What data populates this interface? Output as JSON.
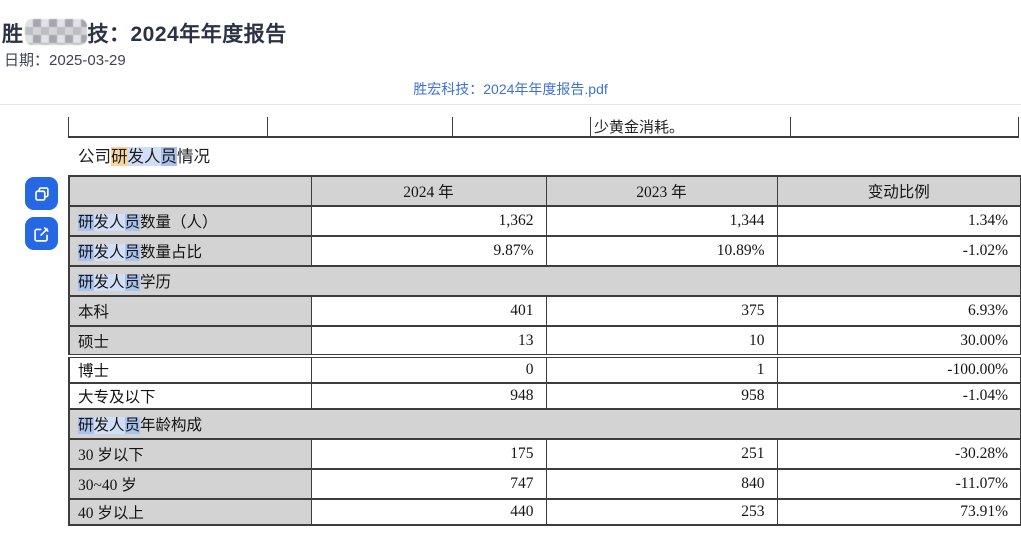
{
  "header": {
    "title_prefix": "胜",
    "title_suffix": "技：2024年年度报告",
    "date_label": "日期：",
    "date_value": "2025-03-29",
    "pdf_link_text": "胜宏科技：2024年年度报告.pdf"
  },
  "side_toolbar": {
    "copy_button": "copy-icon",
    "edit_button": "edit-icon"
  },
  "colors": {
    "accent_blue": "#2667e2",
    "link_blue": "#3e71d9",
    "cell_gray": "#d3d3d3",
    "border_dark": "#3d3d3d",
    "highlight_blue_strong": "#a9c2ee",
    "highlight_blue_weak": "#d2def6",
    "highlight_orange": "#f9d6a0"
  },
  "prev_table_fragment": {
    "text": "少黄金消耗。"
  },
  "section_heading": {
    "segments": [
      {
        "t": "公司"
      },
      {
        "t": "研",
        "h": "o"
      },
      {
        "t": "发人",
        "h": "w"
      },
      {
        "t": "员",
        "h": "s"
      },
      {
        "t": "情况"
      }
    ]
  },
  "table": {
    "columns": [
      "",
      "2024 年",
      "2023 年",
      "变动比例"
    ],
    "rows": [
      {
        "type": "data",
        "gray": true,
        "label": [
          {
            "t": "研",
            "h": "s"
          },
          {
            "t": "发人",
            "h": "w"
          },
          {
            "t": "员",
            "h": "s"
          },
          {
            "t": "数量（人）"
          }
        ],
        "values": [
          "1,362",
          "1,344",
          "1.34%"
        ]
      },
      {
        "type": "data",
        "gray": true,
        "label": [
          {
            "t": "研",
            "h": "s"
          },
          {
            "t": "发人",
            "h": "w"
          },
          {
            "t": "员",
            "h": "s"
          },
          {
            "t": "数量占比"
          }
        ],
        "values": [
          "9.87%",
          "10.89%",
          "-1.02%"
        ]
      },
      {
        "type": "section",
        "label": [
          {
            "t": "研",
            "h": "s"
          },
          {
            "t": "发人",
            "h": "w"
          },
          {
            "t": "员",
            "h": "s"
          },
          {
            "t": "学历"
          }
        ]
      },
      {
        "type": "data",
        "gray": true,
        "label": [
          {
            "t": "本科"
          }
        ],
        "values": [
          "401",
          "375",
          "6.93%"
        ]
      },
      {
        "type": "data",
        "gray": true,
        "label": [
          {
            "t": "硕士"
          }
        ],
        "values": [
          "13",
          "10",
          "30.00%"
        ]
      },
      {
        "type": "data",
        "gray": false,
        "label": [
          {
            "t": "博士"
          }
        ],
        "values": [
          "0",
          "1",
          "-100.00%"
        ]
      },
      {
        "type": "data",
        "gray": false,
        "label": [
          {
            "t": "大专及以下"
          }
        ],
        "values": [
          "948",
          "958",
          "-1.04%"
        ]
      },
      {
        "type": "section",
        "label": [
          {
            "t": "研",
            "h": "s"
          },
          {
            "t": "发人",
            "h": "w"
          },
          {
            "t": "员",
            "h": "s"
          },
          {
            "t": "年龄构成"
          }
        ]
      },
      {
        "type": "data",
        "gray": true,
        "label": [
          {
            "t": "30 岁以下"
          }
        ],
        "values": [
          "175",
          "251",
          "-30.28%"
        ]
      },
      {
        "type": "data",
        "gray": true,
        "label": [
          {
            "t": "30~40 岁"
          }
        ],
        "values": [
          "747",
          "840",
          "-11.07%"
        ]
      },
      {
        "type": "data",
        "gray": true,
        "label": [
          {
            "t": "40 岁以上"
          }
        ],
        "values": [
          "440",
          "253",
          "73.91%"
        ]
      }
    ]
  }
}
